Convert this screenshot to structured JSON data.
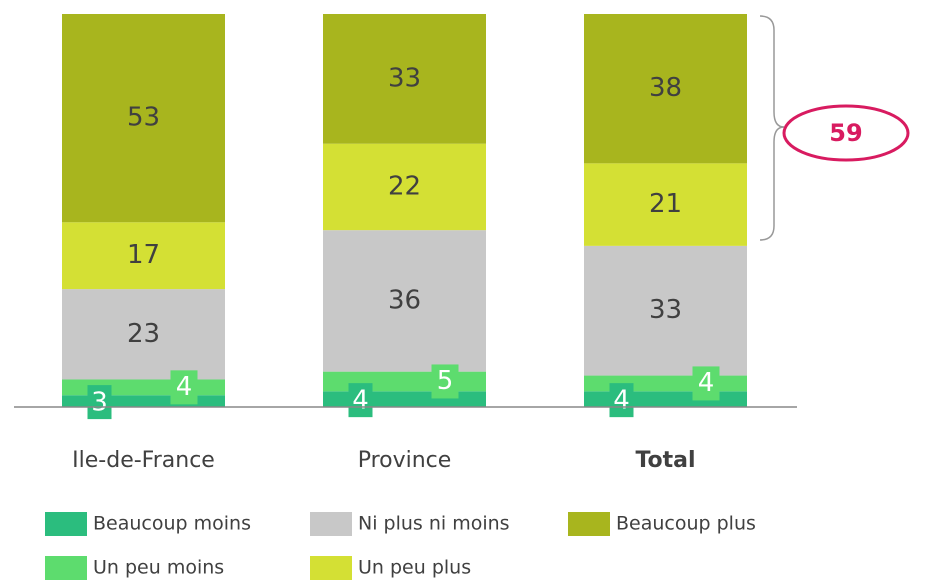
{
  "chart_data": {
    "type": "stacked_bar",
    "categories": [
      "Ile-de-France",
      "Province",
      "Total"
    ],
    "series": [
      {
        "name": "Beaucoup moins",
        "color": "#2bbd7e",
        "values": [
          3,
          4,
          4
        ]
      },
      {
        "name": "Un peu moins",
        "color": "#5ddc6e",
        "values": [
          4,
          5,
          4
        ]
      },
      {
        "name": "Ni plus ni moins",
        "color": "#c8c8c8",
        "values": [
          23,
          36,
          33
        ]
      },
      {
        "name": "Un peu plus",
        "color": "#d4e034",
        "values": [
          17,
          22,
          21
        ]
      },
      {
        "name": "Beaucoup plus",
        "color": "#a8b51e",
        "values": [
          53,
          33,
          38
        ]
      }
    ],
    "ylim": [
      0,
      100
    ],
    "bracket_total": 59
  }
}
